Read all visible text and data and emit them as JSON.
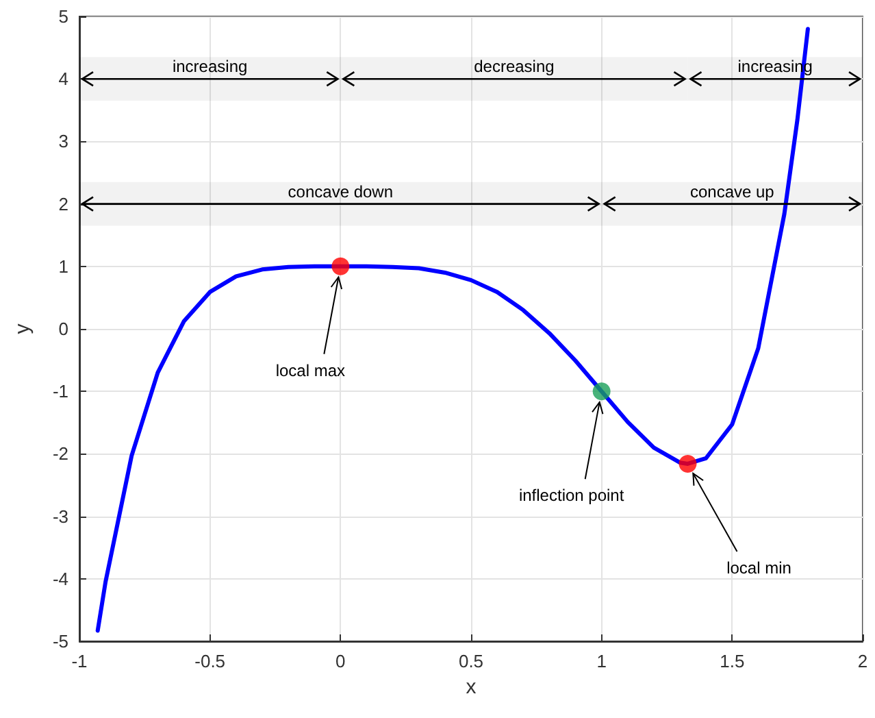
{
  "chart_data": {
    "type": "line",
    "xlabel": "x",
    "ylabel": "y",
    "xlim": [
      -1,
      2
    ],
    "xticks": [
      -1,
      -0.5,
      0,
      0.5,
      1,
      1.5,
      2
    ],
    "ylim": [
      -5,
      5
    ],
    "yticks": [
      -5,
      -4,
      -3,
      -2,
      -1,
      0,
      1,
      2,
      3,
      4,
      5
    ],
    "grid": true,
    "series": [
      {
        "type": "line",
        "color": "#0000ff",
        "marker": "none",
        "x": [
          -0.93,
          -0.9,
          -0.8,
          -0.7,
          -0.6,
          -0.5,
          -0.4,
          -0.3,
          -0.2,
          -0.1,
          0,
          0.1,
          0.2,
          0.3,
          0.4,
          0.5,
          0.6,
          0.7,
          0.8,
          0.9,
          1.0,
          1.1,
          1.2,
          1.3,
          1.33,
          1.4,
          1.5,
          1.6,
          1.7,
          1.75,
          1.79
        ],
        "values": [
          -4.83,
          -4.05,
          -2.03,
          -0.7,
          0.12,
          0.59,
          0.84,
          0.95,
          0.99,
          1.0,
          1.0,
          1.0,
          0.99,
          0.97,
          0.9,
          0.78,
          0.59,
          0.3,
          -0.07,
          -0.51,
          -1.0,
          -1.49,
          -1.9,
          -2.14,
          -2.16,
          -2.07,
          -1.53,
          -0.31,
          1.84,
          3.35,
          4.8
        ]
      },
      {
        "type": "scatter",
        "marker": "circle",
        "x": [
          0,
          1,
          1.33
        ],
        "values": [
          1,
          -1,
          -2.16
        ],
        "colors": [
          "#ff0000",
          "#1aa05a",
          "#ff0000"
        ]
      }
    ],
    "bands": [
      {
        "axis": "x",
        "from": -1,
        "to": 0,
        "label": "increasing",
        "color": "#000000"
      },
      {
        "axis": "x",
        "from": 0,
        "to": 1.33,
        "label": "decreasing",
        "color": "#000000"
      },
      {
        "axis": "x",
        "from": 1.33,
        "to": 2,
        "label": "increasing",
        "color": "#000000"
      },
      {
        "axis": "x",
        "from": -1,
        "to": 1,
        "label": "concave down",
        "color": "#000000"
      },
      {
        "axis": "x",
        "from": 1,
        "to": 2,
        "label": "concave up",
        "color": "#000000"
      }
    ],
    "annotations": [
      {
        "text": "local max",
        "x": 0,
        "y": 1
      },
      {
        "text": "inflection point",
        "x": 1,
        "y": -1
      },
      {
        "text": "local min",
        "x": 1.33,
        "y": -2.16
      }
    ]
  }
}
